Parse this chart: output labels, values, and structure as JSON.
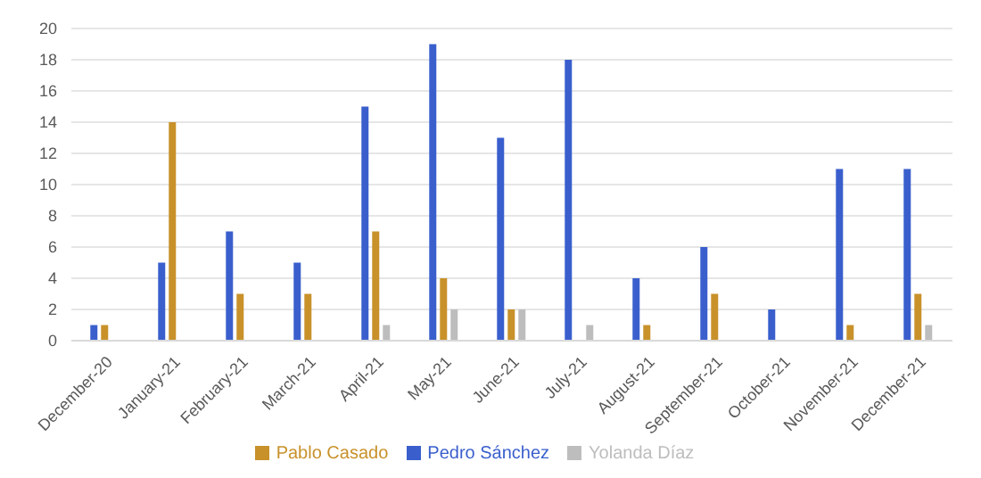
{
  "chart_data": {
    "type": "bar",
    "categories": [
      "December-20",
      "January-21",
      "February-21",
      "March-21",
      "April-21",
      "May-21",
      "June-21",
      "July-21",
      "August-21",
      "September-21",
      "October-21",
      "November-21",
      "December-21"
    ],
    "series": [
      {
        "name": "Pedro Sánchez",
        "color": "#3a5fcd",
        "values": [
          1,
          5,
          7,
          5,
          15,
          19,
          13,
          18,
          4,
          6,
          2,
          11,
          11
        ]
      },
      {
        "name": "Pablo Casado",
        "color": "#c8912a",
        "values": [
          1,
          14,
          3,
          3,
          7,
          4,
          2,
          null,
          1,
          3,
          null,
          1,
          3
        ]
      },
      {
        "name": "Yolanda Díaz",
        "color": "#bdbdbd",
        "values": [
          null,
          null,
          null,
          null,
          1,
          2,
          2,
          1,
          null,
          null,
          null,
          null,
          1
        ]
      }
    ],
    "ylim": [
      0,
      20
    ],
    "yticks": [
      0,
      2,
      4,
      6,
      8,
      10,
      12,
      14,
      16,
      18,
      20
    ],
    "grid": "y",
    "legend": "bottom"
  }
}
